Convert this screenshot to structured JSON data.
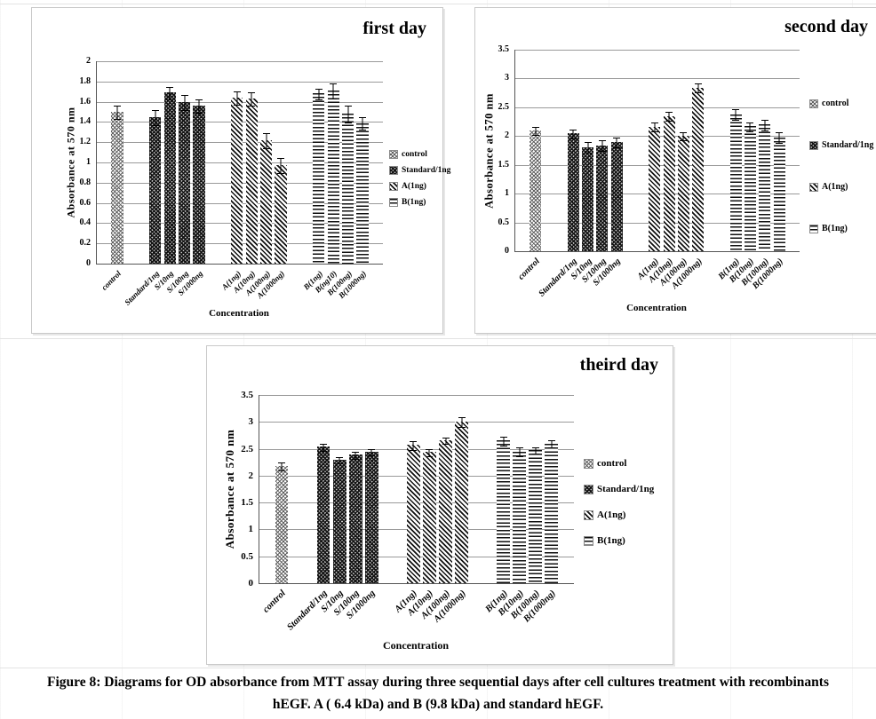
{
  "caption": {
    "line1": "Figure 8: Diagrams for OD absorbance from MTT assay during three sequential days after cell cultures treatment with recombinants",
    "line2": "hEGF. A ( 6.4 kDa) and B (9.8 kDa) and standard hEGF."
  },
  "colors": {
    "bar_ink": "#111111",
    "gridline": "#9a9a9a",
    "axis": "#555555",
    "frame_border": "#c9c9c9"
  },
  "chart_data": [
    {
      "type": "bar",
      "title": "first day",
      "xlabel": "Concentration",
      "ylabel": "Absorbance at 570 nm",
      "ylim": [
        0,
        2
      ],
      "yticks": [
        "0",
        "0.2",
        "0.4",
        "0.6",
        "0.8",
        "1",
        "1.2",
        "1.4",
        "1.6",
        "1.8",
        "2"
      ],
      "grid": true,
      "legend_position": "right",
      "legend": [
        "control",
        "Standard/1ng",
        "A(1ng)",
        "B(1ng)"
      ],
      "series_groups": [
        {
          "name": "control",
          "pattern": "control",
          "count": 1
        },
        {
          "name": "Standard",
          "pattern": "standard",
          "count": 4
        },
        {
          "name": "A",
          "pattern": "diagonal",
          "count": 4
        },
        {
          "name": "B",
          "pattern": "horizontal",
          "count": 4
        }
      ],
      "categories": [
        "control",
        "Standard/1ng",
        "S/10ng",
        "S/100ng",
        "S/1000ng",
        "A(1ng)",
        "A(10ng)",
        "A(100ng)",
        "A(1000ng)",
        "B(1ng)",
        "B(ng10)",
        "B(100ng)",
        "B(1000ng)"
      ],
      "values": [
        1.5,
        1.45,
        1.69,
        1.6,
        1.56,
        1.64,
        1.63,
        1.22,
        0.97,
        1.68,
        1.71,
        1.48,
        1.39
      ],
      "errors": [
        0.06,
        0.07,
        0.06,
        0.07,
        0.06,
        0.06,
        0.06,
        0.07,
        0.07,
        0.05,
        0.07,
        0.08,
        0.06
      ]
    },
    {
      "type": "bar",
      "title": "second day",
      "xlabel": "Concentration",
      "ylabel": "Absorbance at 570 nm",
      "ylim": [
        0,
        3.5
      ],
      "yticks": [
        "0",
        "0.5",
        "1",
        "1.5",
        "2",
        "2.5",
        "3",
        "3.5"
      ],
      "grid": true,
      "legend_position": "right",
      "legend": [
        "control",
        "Standard/1ng",
        "A(1ng)",
        "B(1ng)"
      ],
      "series_groups": [
        {
          "name": "control",
          "pattern": "control",
          "count": 1
        },
        {
          "name": "Standard",
          "pattern": "standard",
          "count": 4
        },
        {
          "name": "A",
          "pattern": "diagonal",
          "count": 4
        },
        {
          "name": "B",
          "pattern": "horizontal",
          "count": 4
        }
      ],
      "categories": [
        "control",
        "Standard/1ng",
        "S/10ng",
        "S/100ng",
        "S/1000ng",
        "A(1ng)",
        "A(10ng)",
        "A(100ng)",
        "A(1000ng)",
        "B(1ng)",
        "B(10ng)",
        "B(100ng)",
        "B(1000ng)"
      ],
      "values": [
        2.1,
        2.05,
        1.81,
        1.84,
        1.9,
        2.16,
        2.35,
        2.0,
        2.84,
        2.38,
        2.17,
        2.2,
        1.98
      ],
      "errors": [
        0.06,
        0.07,
        0.08,
        0.08,
        0.08,
        0.07,
        0.07,
        0.06,
        0.07,
        0.08,
        0.07,
        0.08,
        0.09
      ]
    },
    {
      "type": "bar",
      "title": "theird day",
      "xlabel": "Concentration",
      "ylabel": "Absorbance at 570 nm",
      "ylim": [
        0,
        3.5
      ],
      "yticks": [
        "0",
        "0.5",
        "1",
        "1.5",
        "2",
        "2.5",
        "3",
        "3.5"
      ],
      "grid": true,
      "legend_position": "right",
      "legend": [
        "control",
        "Standard/1ng",
        "A(1ng)",
        "B(1ng)"
      ],
      "series_groups": [
        {
          "name": "control",
          "pattern": "control",
          "count": 1
        },
        {
          "name": "Standard",
          "pattern": "standard",
          "count": 4
        },
        {
          "name": "A",
          "pattern": "diagonal",
          "count": 4
        },
        {
          "name": "B",
          "pattern": "horizontal",
          "count": 4
        }
      ],
      "categories": [
        "control",
        "Standard/1ng",
        "S/10ng",
        "S/100ng",
        "S/1000ng",
        "A(1ng)",
        "A(10ng)",
        "A(100ng)",
        "A(1000ng)",
        "B(1ng)",
        "B(10ng)",
        "B(100ng)",
        "B(1000ng)"
      ],
      "values": [
        2.18,
        2.54,
        2.29,
        2.39,
        2.45,
        2.57,
        2.44,
        2.66,
        3.0,
        2.65,
        2.45,
        2.48,
        2.6
      ],
      "errors": [
        0.06,
        0.06,
        0.05,
        0.06,
        0.05,
        0.07,
        0.06,
        0.05,
        0.08,
        0.07,
        0.08,
        0.05,
        0.06
      ]
    }
  ]
}
